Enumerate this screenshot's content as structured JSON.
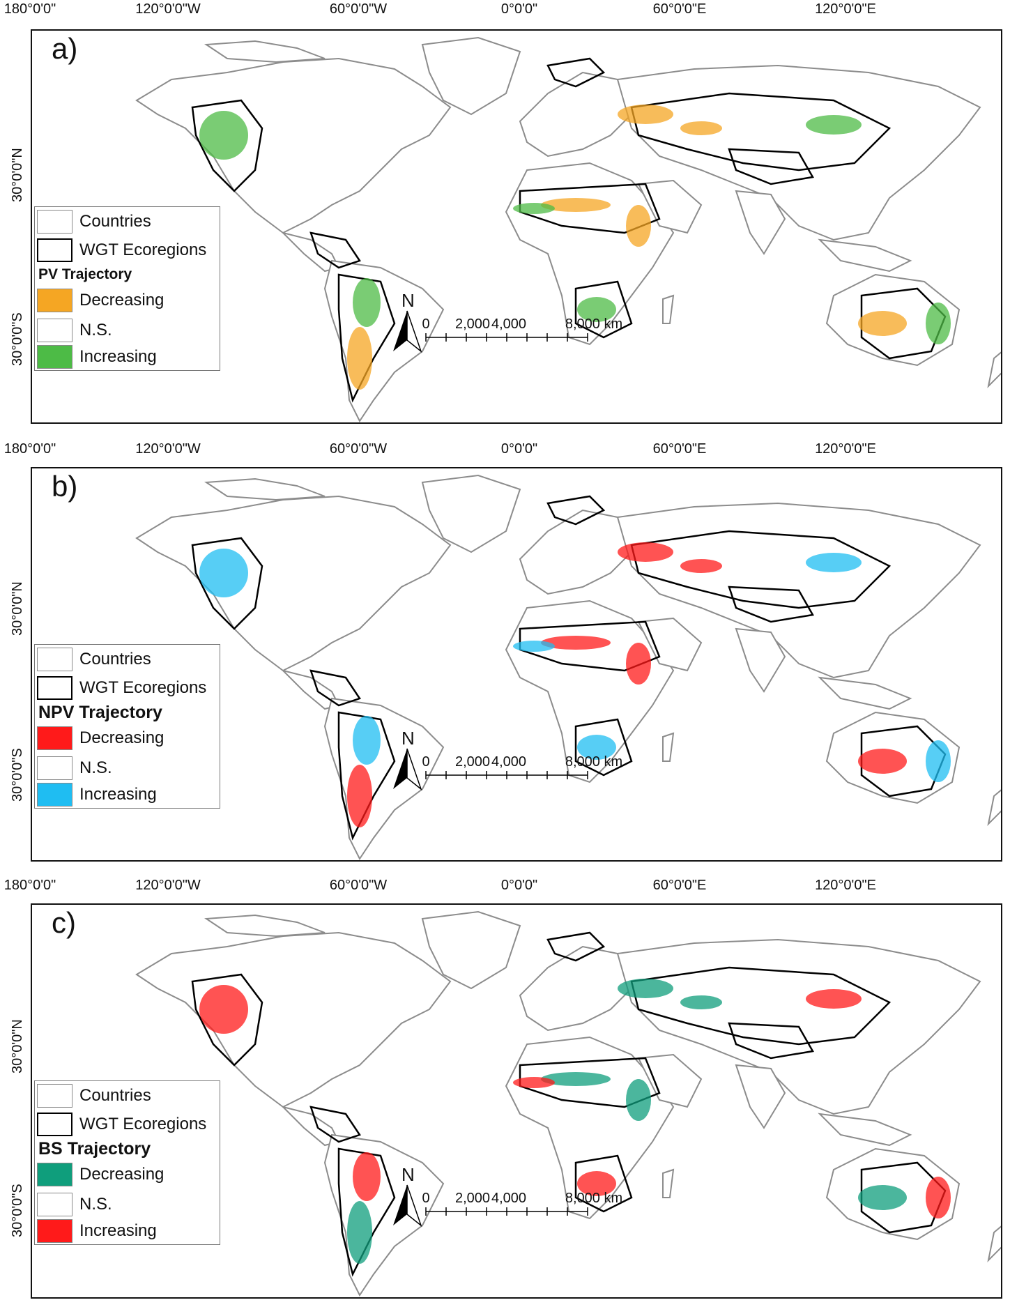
{
  "top_coords": [
    "180°0'0\"",
    "120°0'0\"W",
    "60°0'0\"W",
    "0°0'0\"",
    "60°0'0\"E",
    "120°0'0\"E"
  ],
  "lat_labels": [
    "30°0'0\"N",
    "30°0'0\"S"
  ],
  "common_legend": {
    "countries": "Countries",
    "ecoregions": "WGT Ecoregions",
    "ns": "N.S."
  },
  "panels": [
    {
      "label": "a)",
      "legend_title": "PV Trajectory",
      "decreasing": "Decreasing",
      "increasing": "Increasing",
      "decreasing_color": "#f5a623",
      "increasing_color": "#4dbb46"
    },
    {
      "label": "b)",
      "legend_title": "NPV Trajectory",
      "decreasing": "Decreasing",
      "increasing": "Increasing",
      "decreasing_color": "#ff1a1a",
      "increasing_color": "#1fbdf2"
    },
    {
      "label": "c)",
      "legend_title": "BS Trajectory",
      "decreasing": "Decreasing",
      "increasing": "Increasing",
      "decreasing_color": "#0f9e7c",
      "increasing_color": "#ff1a1a"
    }
  ],
  "north_arrow": "N",
  "scale_labels": [
    "0",
    "2,000",
    "4,000",
    "8,000 km"
  ],
  "colors": {
    "land_outline": "#8c8c8c",
    "ecoregion_outline": "#000000"
  }
}
